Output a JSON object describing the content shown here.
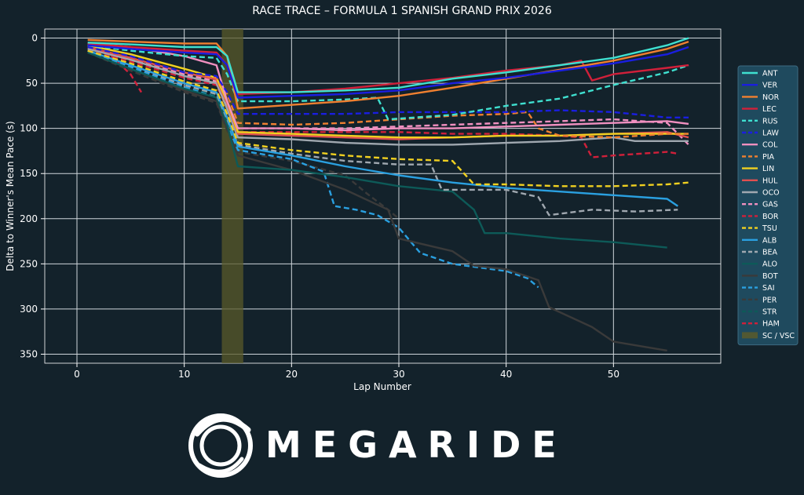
{
  "chart_data": {
    "type": "line",
    "title": "RACE TRACE – FORMULA 1 SPANISH GRAND PRIX 2026",
    "xlabel": "Lap Number",
    "ylabel": "Delta to Winner's Mean Pace (s)",
    "xlim": [
      -3,
      60
    ],
    "ylim": [
      360,
      -10
    ],
    "xticks": [
      0,
      10,
      20,
      30,
      40,
      50
    ],
    "yticks": [
      0,
      50,
      100,
      150,
      200,
      250,
      300,
      350
    ],
    "grid": true,
    "legend": "right",
    "sc_vsc": {
      "label": "SC / VSC",
      "start": 13.5,
      "end": 15.5,
      "color": "#5a5a2a"
    },
    "series": [
      {
        "name": "ANT",
        "color": "#3fe0d0",
        "dash": "solid",
        "x": [
          1,
          5,
          10,
          13,
          14,
          15,
          20,
          25,
          30,
          35,
          40,
          45,
          50,
          55,
          57
        ],
        "y": [
          5,
          7,
          10,
          10,
          20,
          60,
          60,
          58,
          55,
          45,
          38,
          30,
          22,
          8,
          0
        ]
      },
      {
        "name": "VER",
        "color": "#1a1ee0",
        "dash": "solid",
        "x": [
          1,
          5,
          10,
          13,
          14,
          15,
          20,
          25,
          30,
          35,
          40,
          45,
          50,
          55,
          57
        ],
        "y": [
          8,
          12,
          16,
          18,
          30,
          66,
          64,
          62,
          58,
          50,
          44,
          36,
          28,
          18,
          10
        ]
      },
      {
        "name": "NOR",
        "color": "#f08030",
        "dash": "solid",
        "x": [
          1,
          5,
          10,
          13,
          14,
          15,
          20,
          25,
          30,
          35,
          40,
          45,
          50,
          55,
          57
        ],
        "y": [
          2,
          4,
          6,
          6,
          20,
          78,
          74,
          70,
          64,
          55,
          45,
          35,
          25,
          12,
          4
        ]
      },
      {
        "name": "LEC",
        "color": "#d0203a",
        "dash": "solid",
        "x": [
          1,
          5,
          10,
          13,
          14,
          15,
          20,
          25,
          30,
          35,
          40,
          45,
          47,
          48,
          50,
          55,
          57
        ],
        "y": [
          6,
          10,
          14,
          16,
          30,
          62,
          60,
          56,
          50,
          44,
          36,
          30,
          25,
          47,
          40,
          33,
          30
        ]
      },
      {
        "name": "RUS",
        "color": "#3fe0d0",
        "dash": "dash",
        "x": [
          1,
          5,
          10,
          13,
          14,
          15,
          20,
          25,
          28,
          29,
          35,
          40,
          45,
          50,
          55,
          57
        ],
        "y": [
          8,
          14,
          20,
          22,
          40,
          70,
          70,
          68,
          66,
          90,
          85,
          75,
          67,
          52,
          38,
          30
        ]
      },
      {
        "name": "LAW",
        "color": "#1a1ee0",
        "dash": "dash",
        "x": [
          1,
          5,
          10,
          13,
          14,
          15,
          20,
          25,
          30,
          35,
          40,
          45,
          50,
          55,
          57
        ],
        "y": [
          10,
          20,
          38,
          42,
          60,
          84,
          84,
          84,
          82,
          82,
          82,
          80,
          82,
          88,
          88
        ]
      },
      {
        "name": "COL",
        "color": "#f090c0",
        "dash": "solid",
        "x": [
          1,
          5,
          10,
          13,
          14,
          15,
          20,
          25,
          30,
          35,
          40,
          45,
          50,
          55,
          57
        ],
        "y": [
          6,
          10,
          20,
          30,
          70,
          100,
          100,
          102,
          100,
          100,
          98,
          96,
          94,
          92,
          95
        ]
      },
      {
        "name": "PIA",
        "color": "#f08030",
        "dash": "dash",
        "x": [
          1,
          5,
          10,
          13,
          14,
          15,
          20,
          25,
          30,
          35,
          40,
          42,
          43,
          45,
          50,
          55,
          57
        ],
        "y": [
          10,
          20,
          38,
          44,
          62,
          94,
          96,
          94,
          90,
          86,
          84,
          82,
          100,
          108,
          110,
          106,
          106
        ]
      },
      {
        "name": "LIN",
        "color": "#f0d020",
        "dash": "solid",
        "x": [
          1,
          5,
          10,
          13,
          14,
          15,
          20,
          25,
          30,
          35,
          40,
          45,
          50,
          55,
          57
        ],
        "y": [
          8,
          18,
          34,
          44,
          70,
          104,
          106,
          108,
          110,
          110,
          108,
          108,
          106,
          106,
          106
        ]
      },
      {
        "name": "HUL",
        "color": "#e05050",
        "dash": "solid",
        "x": [
          1,
          5,
          10,
          13,
          14,
          15,
          20,
          25,
          30,
          35,
          40,
          45,
          50,
          55,
          57
        ],
        "y": [
          10,
          22,
          38,
          46,
          72,
          106,
          108,
          110,
          112,
          110,
          108,
          108,
          106,
          104,
          110
        ]
      },
      {
        "name": "OCO",
        "color": "#a0a8b0",
        "dash": "solid",
        "x": [
          1,
          5,
          10,
          13,
          14,
          15,
          20,
          25,
          30,
          35,
          40,
          45,
          50,
          52,
          55,
          57
        ],
        "y": [
          12,
          24,
          42,
          50,
          78,
          110,
          112,
          116,
          118,
          118,
          116,
          114,
          110,
          114,
          114,
          114
        ]
      },
      {
        "name": "GAS",
        "color": "#f090c0",
        "dash": "dash",
        "x": [
          1,
          5,
          10,
          13,
          14,
          15,
          20,
          25,
          30,
          35,
          40,
          45,
          50,
          55,
          57
        ],
        "y": [
          10,
          22,
          40,
          48,
          74,
          100,
          100,
          100,
          98,
          96,
          94,
          92,
          90,
          94,
          118
        ]
      },
      {
        "name": "BOR",
        "color": "#d0203a",
        "dash": "dash",
        "x": [
          1,
          5,
          10,
          13,
          14,
          15,
          20,
          25,
          30,
          35,
          40,
          45,
          47,
          48,
          50,
          55,
          56
        ],
        "y": [
          12,
          26,
          44,
          52,
          78,
          104,
          104,
          104,
          104,
          106,
          106,
          108,
          110,
          132,
          130,
          126,
          128
        ]
      },
      {
        "name": "TSU",
        "color": "#f0d020",
        "dash": "dash",
        "x": [
          1,
          5,
          10,
          13,
          14,
          15,
          20,
          25,
          30,
          35,
          37,
          40,
          45,
          50,
          55,
          57
        ],
        "y": [
          14,
          28,
          48,
          58,
          84,
          116,
          124,
          130,
          134,
          136,
          162,
          162,
          164,
          164,
          162,
          160
        ]
      },
      {
        "name": "ALB",
        "color": "#2aa0e0",
        "dash": "solid",
        "x": [
          1,
          5,
          10,
          13,
          14,
          15,
          20,
          25,
          30,
          35,
          40,
          45,
          50,
          55,
          56
        ],
        "y": [
          14,
          30,
          50,
          60,
          88,
          120,
          130,
          142,
          152,
          160,
          166,
          170,
          174,
          178,
          186
        ]
      },
      {
        "name": "BEA",
        "color": "#a0a8b0",
        "dash": "dash",
        "x": [
          1,
          5,
          10,
          13,
          14,
          15,
          20,
          25,
          30,
          33,
          34,
          40,
          43,
          44,
          48,
          52,
          56
        ],
        "y": [
          14,
          30,
          52,
          62,
          90,
          118,
          128,
          136,
          140,
          140,
          168,
          168,
          176,
          196,
          190,
          192,
          190
        ]
      },
      {
        "name": "ALO",
        "color": "#0d5a58",
        "dash": "solid",
        "x": [
          1,
          5,
          10,
          13,
          14,
          15,
          20,
          25,
          30,
          35,
          37,
          38,
          40,
          45,
          50,
          55
        ],
        "y": [
          16,
          34,
          56,
          66,
          96,
          142,
          146,
          154,
          164,
          170,
          190,
          216,
          216,
          222,
          226,
          232
        ]
      },
      {
        "name": "BOT",
        "color": "#3a3a3a",
        "dash": "solid",
        "x": [
          1,
          5,
          10,
          13,
          14,
          15,
          20,
          25,
          29,
          30,
          35,
          37,
          40,
          43,
          44,
          48,
          50,
          55
        ],
        "y": [
          16,
          34,
          58,
          70,
          100,
          130,
          146,
          168,
          190,
          222,
          236,
          252,
          256,
          268,
          298,
          320,
          336,
          346
        ]
      },
      {
        "name": "SAI",
        "color": "#2aa0e0",
        "dash": "dash",
        "x": [
          1,
          5,
          10,
          13,
          14,
          15,
          20,
          23,
          24,
          26,
          28,
          30,
          32,
          35,
          40,
          42,
          43
        ],
        "y": [
          14,
          32,
          54,
          66,
          96,
          124,
          134,
          148,
          186,
          190,
          196,
          210,
          238,
          250,
          258,
          266,
          276
        ]
      },
      {
        "name": "PER",
        "color": "#3a3a3a",
        "dash": "dash",
        "x": [
          1,
          5,
          10,
          13,
          14,
          15,
          20,
          25,
          27,
          29,
          30
        ],
        "y": [
          16,
          36,
          60,
          72,
          102,
          126,
          136,
          152,
          172,
          190,
          200
        ]
      },
      {
        "name": "STR",
        "color": "#0d5a58",
        "dash": "dash",
        "x": [
          1,
          5,
          10,
          13,
          14,
          15,
          20,
          22
        ],
        "y": [
          14,
          32,
          54,
          64,
          92,
          120,
          130,
          134
        ]
      },
      {
        "name": "HAM",
        "color": "#d0203a",
        "dash": "dash",
        "x": [
          1,
          3,
          5,
          6
        ],
        "y": [
          8,
          18,
          40,
          60
        ]
      }
    ]
  },
  "brand": {
    "name": "MEGARIDE"
  }
}
